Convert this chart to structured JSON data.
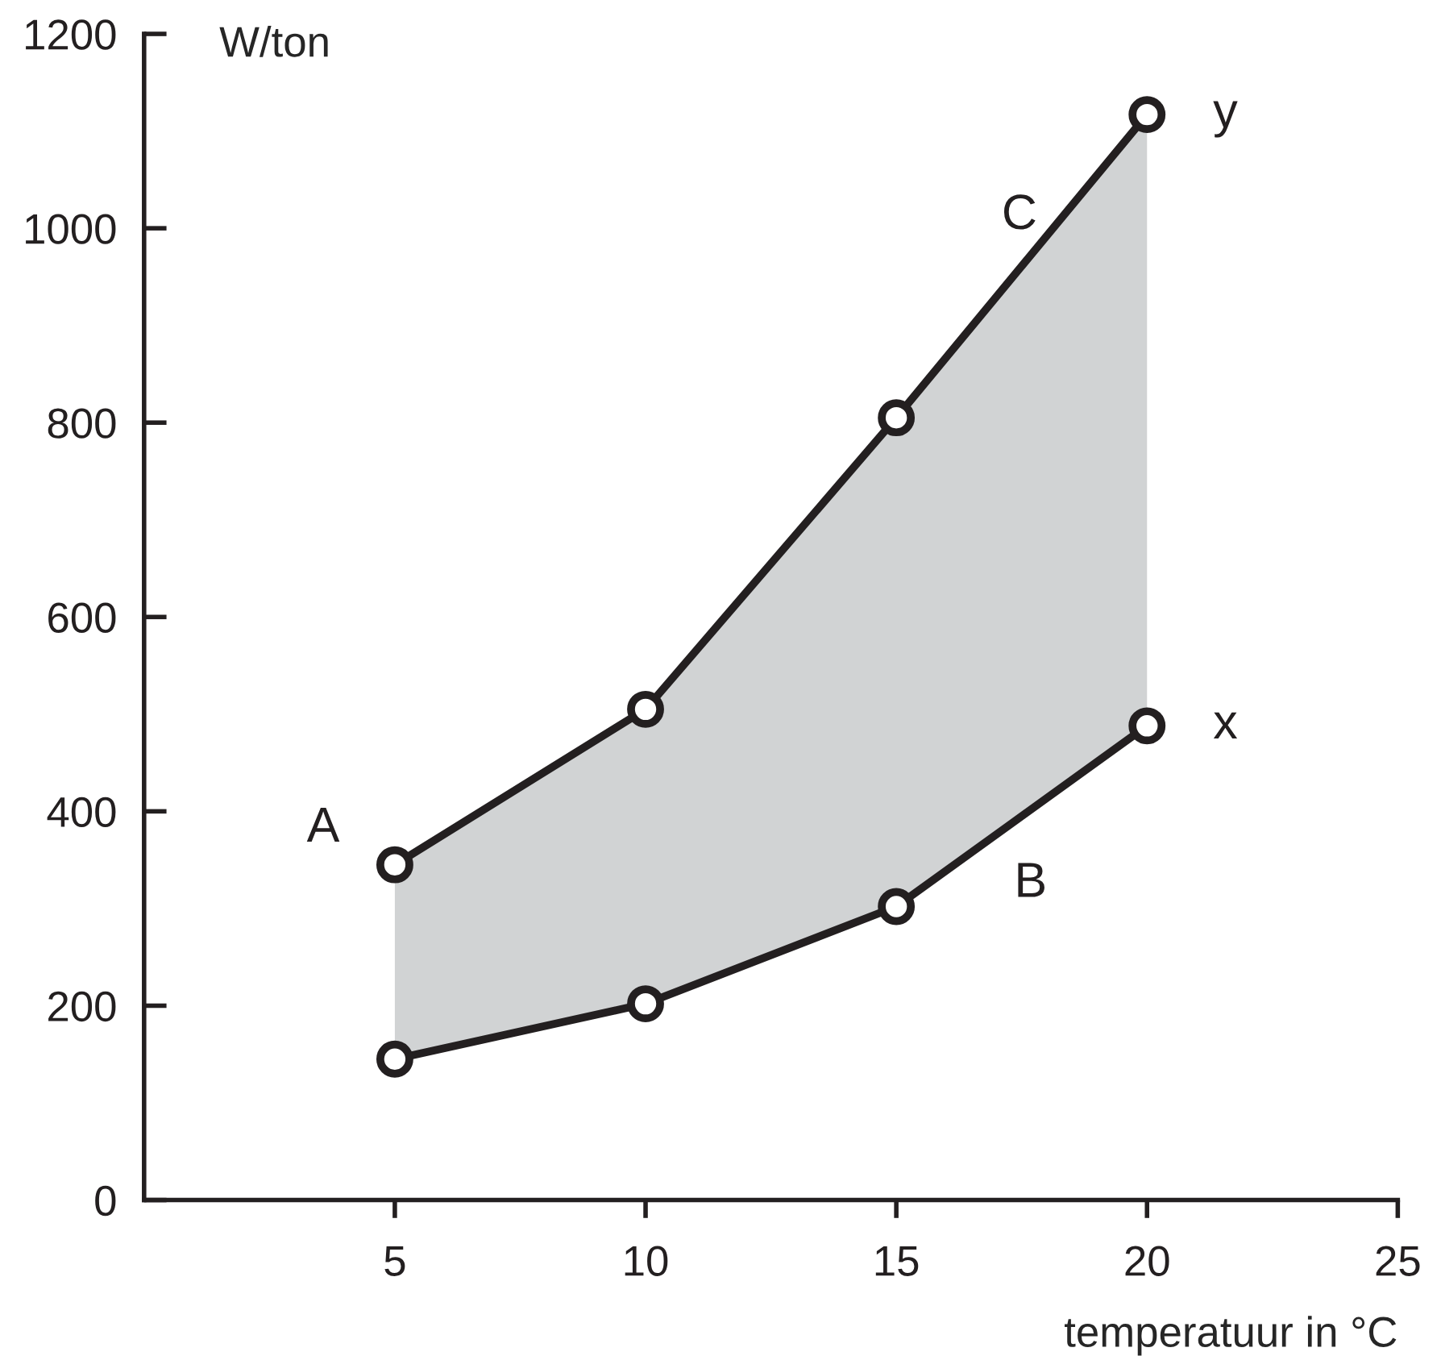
{
  "chart_data": {
    "type": "line",
    "xlabel": "temperatuur in °C",
    "ylabel": "W/ton",
    "x": [
      5,
      10,
      15,
      20
    ],
    "series": [
      {
        "color": "#231f20",
        "values": [
          345,
          505,
          805,
          1117
        ],
        "lower": [
          145,
          202,
          302,
          488
        ],
        "upper": [
          345,
          505,
          805,
          1117
        ]
      },
      {
        "color": "#231f20",
        "values": [
          145,
          202,
          302,
          488
        ]
      }
    ],
    "annotations": [
      "A",
      "C",
      "B",
      "x",
      "y"
    ],
    "xlim": [
      0,
      25
    ],
    "xticks": [
      5,
      10,
      15,
      20,
      25
    ],
    "ylim": [
      0,
      1200
    ],
    "yticks": [
      0,
      200,
      400,
      600,
      800,
      1000,
      1200
    ],
    "grid": false,
    "legend": false,
    "marker": "circle",
    "line_style": "solid"
  }
}
